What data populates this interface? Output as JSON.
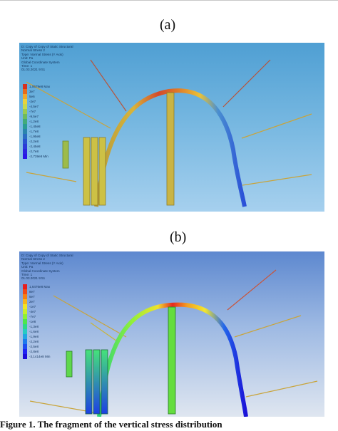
{
  "panels": [
    {
      "label": "(a)",
      "info_lines": [
        "D: Copy of Copy of Static Structural",
        "Normal Stress 2",
        "Type: Normal Stress (Y Axis)",
        "Unit: Pa",
        "Global Coordinate System",
        "Time: 1",
        "01.03.2021 9:51"
      ],
      "legend": [
        {
          "label": "1,0679e8 Max",
          "color": "#d7301f"
        },
        {
          "label": "3e7",
          "color": "#e86b1a"
        },
        {
          "label": "5e6",
          "color": "#f2a62a"
        },
        {
          "label": "-2e7",
          "color": "#e9d23b"
        },
        {
          "label": "-4,5e7",
          "color": "#c9d84b"
        },
        {
          "label": "-7e7",
          "color": "#9acb52"
        },
        {
          "label": "-9,5e7",
          "color": "#6dbb5f"
        },
        {
          "label": "-1,2e8",
          "color": "#43ab78"
        },
        {
          "label": "-1,45e8",
          "color": "#2b9c93"
        },
        {
          "label": "-1,7e8",
          "color": "#2a84ad"
        },
        {
          "label": "-1,95e8",
          "color": "#2a6cc2"
        },
        {
          "label": "-2,2e8",
          "color": "#2852d0"
        },
        {
          "label": "-2,45e8",
          "color": "#2a3ad9"
        },
        {
          "label": "-2,7e8",
          "color": "#2c24e0"
        },
        {
          "label": "-2,739e8 Min",
          "color": "#2a16e8"
        }
      ]
    },
    {
      "label": "(b)",
      "info_lines": [
        "D: Copy of Copy of Static Structural",
        "Normal Stress 2",
        "Type: Normal Stress (Y Axis)",
        "Unit: Pa",
        "Global Coordinate System",
        "Time: 1",
        "01.03.2021 9:51"
      ],
      "legend": [
        {
          "label": "1,6476e8 Max",
          "color": "#e81e1e"
        },
        {
          "label": "8e7",
          "color": "#ef4a14"
        },
        {
          "label": "5e7",
          "color": "#f57f12"
        },
        {
          "label": "2e7",
          "color": "#f6b51b"
        },
        {
          "label": "-1e7",
          "color": "#f2e424"
        },
        {
          "label": "-4e7",
          "color": "#c6ef2a"
        },
        {
          "label": "-7e7",
          "color": "#8df034"
        },
        {
          "label": "-1e8",
          "color": "#4ee64a"
        },
        {
          "label": "-1,3e8",
          "color": "#2ed987"
        },
        {
          "label": "-1,6e8",
          "color": "#27cbc2"
        },
        {
          "label": "-1,9e8",
          "color": "#21a7e2"
        },
        {
          "label": "-2,2e8",
          "color": "#1d79ec"
        },
        {
          "label": "-2,5e8",
          "color": "#1c4cf1"
        },
        {
          "label": "-2,8e8",
          "color": "#1f22f3"
        },
        {
          "label": "-3,1414e8 Min",
          "color": "#1a0bd9"
        }
      ]
    }
  ],
  "caption": "Figure 1. The fragment of the vertical stress distribution"
}
